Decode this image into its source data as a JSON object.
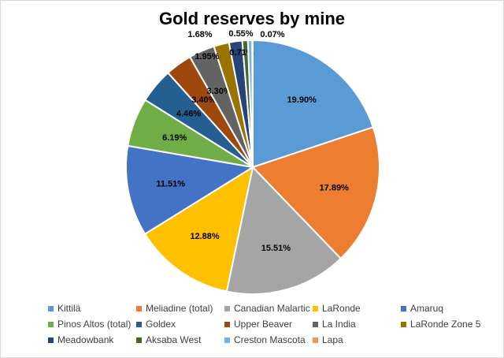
{
  "chart_data": {
    "type": "pie",
    "title": "Gold reserves by mine",
    "legend_position": "bottom",
    "slices": [
      {
        "label": "Kittilä",
        "value": 19.9,
        "value_label": "19.90%",
        "color": "#5B9BD5"
      },
      {
        "label": "Meliadine (total)",
        "value": 17.89,
        "value_label": "17.89%",
        "color": "#ED7D31"
      },
      {
        "label": "Canadian Malartic",
        "value": 15.51,
        "value_label": "15.51%",
        "color": "#A5A5A5"
      },
      {
        "label": "LaRonde",
        "value": 12.88,
        "value_label": "12.88%",
        "color": "#FFC000"
      },
      {
        "label": "Amaruq",
        "value": 11.51,
        "value_label": "11.51%",
        "color": "#4472C4"
      },
      {
        "label": "Pinos Altos (total)",
        "value": 6.19,
        "value_label": "6.19%",
        "color": "#70AD47"
      },
      {
        "label": "Goldex",
        "value": 4.46,
        "value_label": "4.46%",
        "color": "#255E91"
      },
      {
        "label": "Upper Beaver",
        "value": 3.4,
        "value_label": "3.40%",
        "color": "#9E480E"
      },
      {
        "label": "La India",
        "value": 3.3,
        "value_label": "3.30%",
        "color": "#636363"
      },
      {
        "label": "LaRonde Zone 5",
        "value": 1.95,
        "value_label": "1.95%",
        "color": "#997300"
      },
      {
        "label": "Meadowbank",
        "value": 1.68,
        "value_label": "1.68%",
        "color": "#264478"
      },
      {
        "label": "Aksaba West",
        "value": 0.71,
        "value_label": "0.71%",
        "color": "#43682B"
      },
      {
        "label": "Creston Mascota",
        "value": 0.55,
        "value_label": "0.55%",
        "color": "#7CAFDD"
      },
      {
        "label": "Lapa",
        "value": 0.07,
        "value_label": "0.07%",
        "color": "#F1975A"
      }
    ]
  }
}
